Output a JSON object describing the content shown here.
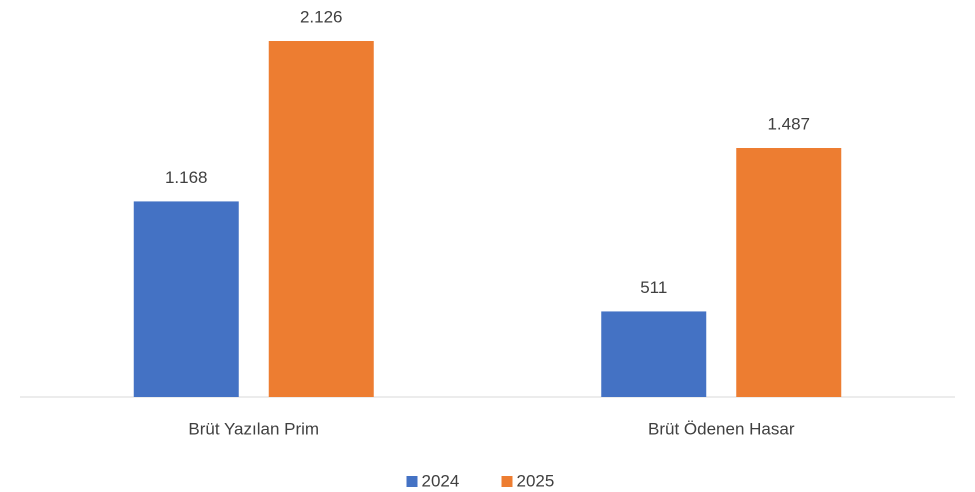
{
  "chart_data": {
    "type": "bar",
    "categories": [
      "Brüt Yazılan Prim",
      "Brüt Ödenen Hasar"
    ],
    "series": [
      {
        "name": "2024",
        "color": "#4472c4",
        "values": [
          1168,
          511
        ],
        "value_labels": [
          "1.168",
          "511"
        ]
      },
      {
        "name": "2025",
        "color": "#ed7d31",
        "values": [
          2126,
          1487
        ],
        "value_labels": [
          "2.126",
          "1.487"
        ]
      }
    ],
    "legend": "bottom"
  }
}
